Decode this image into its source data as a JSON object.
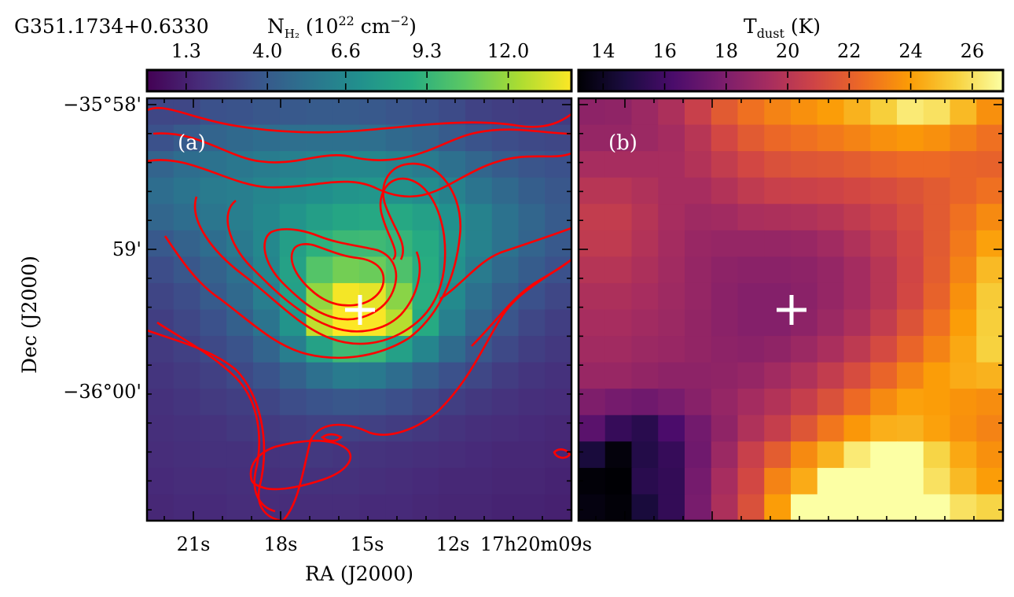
{
  "figure": {
    "source_name": "G351.1734+0.6330",
    "ra_axis_label": "RA (J2000)",
    "dec_axis_label": "Dec (J2000)",
    "marker_color": "#ffffff",
    "contour_color": "#ff0000"
  },
  "chart_data": [
    {
      "type": "heatmap",
      "panel_label": "(a)",
      "colormap": "viridis",
      "colorbar": {
        "label_base": "N",
        "label_sub": "H₂",
        "label_rest": " (10",
        "label_exp": "22",
        "label_unit": " cm",
        "label_unit_exp": "−2",
        "label_close": ")",
        "ticks": [
          "1.3",
          "4.0",
          "6.6",
          "9.3",
          "12.0"
        ],
        "tick_values": [
          1.3,
          4.0,
          6.6,
          9.3,
          12.0
        ],
        "range": [
          0.0,
          14.1
        ]
      },
      "x_tick_labels": [
        "21s",
        "18s",
        "15s",
        "12s",
        "17h20m09s"
      ],
      "y_tick_labels": [
        "−35°58'",
        "59'",
        "−36°00'"
      ],
      "contours": true,
      "peak_marker": "+",
      "grid": [
        [
          3.0,
          3.0,
          3.5,
          3.6,
          3.8,
          3.9,
          4.0,
          4.0,
          3.9,
          3.7,
          3.5,
          3.2,
          2.8,
          2.6,
          2.5,
          2.5
        ],
        [
          3.5,
          4.0,
          4.5,
          4.8,
          5.0,
          5.1,
          5.2,
          5.2,
          5.1,
          4.8,
          4.5,
          4.0,
          3.6,
          3.3,
          3.1,
          3.0
        ],
        [
          4.5,
          5.0,
          5.3,
          5.6,
          5.9,
          6.1,
          6.3,
          6.5,
          6.5,
          6.2,
          5.8,
          5.2,
          4.6,
          4.1,
          3.7,
          3.5
        ],
        [
          5.0,
          5.4,
          5.8,
          6.0,
          6.4,
          6.7,
          7.0,
          7.3,
          7.4,
          7.2,
          6.8,
          6.2,
          5.4,
          4.8,
          4.2,
          3.8
        ],
        [
          4.6,
          5.0,
          5.5,
          6.0,
          6.6,
          7.3,
          7.9,
          8.3,
          8.5,
          8.5,
          8.0,
          7.1,
          6.2,
          5.3,
          4.6,
          4.0
        ],
        [
          3.9,
          4.4,
          5.0,
          5.7,
          6.6,
          7.9,
          9.0,
          9.5,
          9.6,
          9.3,
          8.6,
          7.4,
          6.2,
          5.3,
          4.5,
          3.9
        ],
        [
          3.3,
          3.8,
          4.4,
          5.2,
          6.4,
          8.1,
          10.3,
          11.1,
          10.9,
          10.1,
          8.8,
          7.2,
          5.8,
          4.8,
          4.1,
          3.5
        ],
        [
          2.9,
          3.3,
          4.0,
          4.8,
          6.0,
          8.0,
          11.8,
          13.9,
          13.6,
          11.6,
          8.9,
          6.7,
          5.2,
          4.2,
          3.5,
          3.0
        ],
        [
          2.6,
          3.0,
          3.5,
          4.3,
          5.4,
          7.3,
          12.8,
          14.1,
          14.0,
          12.6,
          8.6,
          6.1,
          4.6,
          3.7,
          3.0,
          2.6
        ],
        [
          2.4,
          2.7,
          3.1,
          3.6,
          4.5,
          6.0,
          8.1,
          9.6,
          9.4,
          8.0,
          6.4,
          4.9,
          3.8,
          3.1,
          2.6,
          2.3
        ],
        [
          2.2,
          2.4,
          2.7,
          3.1,
          3.6,
          4.3,
          5.2,
          5.8,
          5.7,
          5.0,
          4.2,
          3.5,
          3.0,
          2.5,
          2.2,
          2.0
        ],
        [
          2.0,
          2.2,
          2.4,
          2.6,
          2.9,
          3.3,
          3.6,
          3.8,
          3.7,
          3.4,
          3.0,
          2.6,
          2.3,
          2.1,
          1.9,
          1.8
        ],
        [
          1.9,
          2.0,
          2.1,
          2.3,
          2.4,
          2.6,
          2.8,
          2.8,
          2.7,
          2.5,
          2.3,
          2.1,
          1.9,
          1.8,
          1.7,
          1.6
        ],
        [
          1.8,
          1.9,
          2.0,
          2.0,
          2.1,
          2.2,
          2.3,
          2.2,
          2.1,
          2.0,
          1.9,
          1.8,
          1.7,
          1.6,
          1.6,
          1.5
        ],
        [
          1.7,
          1.8,
          1.8,
          1.9,
          1.9,
          2.0,
          2.0,
          2.0,
          1.9,
          1.8,
          1.7,
          1.6,
          1.6,
          1.5,
          1.5,
          1.4
        ],
        [
          1.6,
          1.7,
          1.7,
          1.8,
          1.8,
          1.8,
          1.8,
          1.8,
          1.7,
          1.7,
          1.6,
          1.5,
          1.5,
          1.4,
          1.4,
          1.3
        ]
      ]
    },
    {
      "type": "heatmap",
      "panel_label": "(b)",
      "colormap": "inferno",
      "colorbar": {
        "label_base": "T",
        "label_sub": "dust",
        "label_rest": " (K)",
        "ticks": [
          "14",
          "16",
          "18",
          "20",
          "22",
          "24",
          "26"
        ],
        "tick_values": [
          14,
          16,
          18,
          20,
          22,
          24,
          26
        ],
        "range": [
          13.2,
          27.0
        ]
      },
      "peak_marker": "+",
      "grid": [
        [
          18.5,
          18.6,
          19.0,
          19.6,
          20.6,
          21.8,
          22.6,
          23.2,
          23.6,
          24.0,
          24.6,
          25.4,
          26.3,
          26.0,
          24.8,
          23.6
        ],
        [
          18.8,
          18.8,
          19.0,
          19.3,
          20.0,
          21.0,
          21.8,
          22.3,
          22.6,
          22.9,
          23.2,
          23.6,
          23.8,
          23.6,
          23.1,
          22.6
        ],
        [
          19.4,
          19.4,
          19.4,
          19.4,
          19.8,
          20.4,
          21.0,
          21.4,
          21.6,
          21.7,
          21.9,
          22.2,
          22.4,
          22.4,
          22.2,
          22.1
        ],
        [
          20.0,
          20.0,
          19.7,
          19.4,
          19.4,
          19.8,
          20.3,
          20.6,
          20.7,
          20.8,
          21.0,
          21.2,
          21.5,
          21.8,
          22.2,
          22.6
        ],
        [
          20.4,
          20.4,
          19.9,
          19.4,
          19.1,
          19.2,
          19.5,
          19.6,
          19.7,
          19.9,
          20.3,
          20.7,
          21.2,
          21.8,
          22.6,
          23.4
        ],
        [
          20.3,
          20.3,
          19.8,
          19.3,
          18.9,
          18.8,
          18.8,
          18.8,
          18.9,
          19.2,
          19.7,
          20.3,
          21.0,
          21.8,
          22.9,
          24.1
        ],
        [
          19.9,
          19.9,
          19.6,
          19.2,
          18.8,
          18.5,
          18.4,
          18.4,
          18.5,
          18.8,
          19.3,
          20.0,
          20.9,
          21.9,
          23.2,
          24.8
        ],
        [
          19.6,
          19.6,
          19.4,
          19.1,
          18.8,
          18.4,
          18.2,
          18.2,
          18.4,
          18.8,
          19.3,
          20.0,
          21.0,
          22.1,
          23.6,
          25.3
        ],
        [
          19.4,
          19.4,
          19.2,
          19.0,
          18.7,
          18.4,
          18.2,
          18.2,
          18.5,
          19.0,
          19.6,
          20.4,
          21.5,
          22.6,
          24.0,
          25.4
        ],
        [
          19.2,
          19.2,
          19.0,
          18.9,
          18.7,
          18.5,
          18.4,
          18.6,
          19.0,
          19.5,
          20.2,
          21.1,
          22.2,
          23.2,
          24.3,
          25.5
        ],
        [
          18.9,
          18.9,
          18.7,
          18.5,
          18.5,
          18.6,
          18.8,
          19.2,
          19.7,
          20.4,
          21.2,
          22.2,
          23.2,
          24.0,
          24.4,
          24.6
        ],
        [
          18.0,
          17.7,
          17.5,
          17.8,
          18.3,
          18.8,
          19.3,
          19.8,
          20.5,
          21.4,
          22.4,
          23.4,
          24.1,
          24.0,
          23.7,
          23.5
        ],
        [
          16.8,
          15.6,
          15.2,
          16.3,
          17.6,
          18.6,
          19.7,
          20.5,
          21.6,
          22.8,
          23.8,
          24.5,
          24.6,
          24.1,
          23.6,
          23.2
        ],
        [
          14.6,
          13.4,
          15.0,
          15.6,
          17.5,
          19.0,
          20.6,
          21.9,
          23.4,
          24.6,
          26.3,
          27.0,
          27.0,
          25.6,
          24.3,
          23.6
        ],
        [
          13.3,
          13.2,
          15.2,
          15.5,
          17.7,
          19.4,
          21.0,
          23.2,
          24.4,
          27.0,
          27.0,
          27.0,
          27.0,
          26.0,
          24.8,
          24.0
        ],
        [
          13.5,
          13.3,
          14.6,
          15.5,
          17.8,
          19.6,
          21.4,
          24.0,
          27.0,
          27.0,
          27.0,
          27.0,
          27.0,
          27.0,
          26.0,
          25.6
        ]
      ]
    }
  ]
}
